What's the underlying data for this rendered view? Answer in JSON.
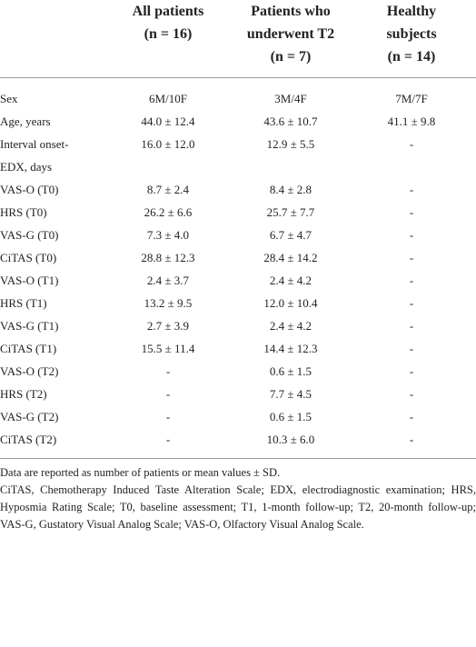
{
  "table": {
    "header": [
      [
        "All patients",
        "(n = 16)"
      ],
      [
        "Patients who",
        "underwent T2",
        "(n = 7)"
      ],
      [
        "Healthy",
        "subjects",
        "(n = 14)"
      ]
    ],
    "rows": [
      [
        "Sex",
        "6M/10F",
        "3M/4F",
        "7M/7F"
      ],
      [
        "Age, years",
        "44.0 ± 12.4",
        "43.6 ± 10.7",
        "41.1 ± 9.8"
      ],
      [
        "Interval onset-EDX, days",
        "16.0 ± 12.0",
        "12.9 ± 5.5",
        "-"
      ],
      [
        "VAS-O (T0)",
        "8.7 ± 2.4",
        "8.4 ± 2.8",
        "-"
      ],
      [
        "HRS (T0)",
        "26.2 ± 6.6",
        "25.7 ± 7.7",
        "-"
      ],
      [
        "VAS-G (T0)",
        "7.3 ± 4.0",
        "6.7 ± 4.7",
        "-"
      ],
      [
        "CiTAS (T0)",
        "28.8 ± 12.3",
        "28.4 ± 14.2",
        "-"
      ],
      [
        "VAS-O (T1)",
        "2.4 ± 3.7",
        "2.4 ± 4.2",
        "-"
      ],
      [
        "HRS (T1)",
        "13.2 ± 9.5",
        "12.0 ± 10.4",
        "-"
      ],
      [
        "VAS-G (T1)",
        "2.7 ± 3.9",
        "2.4 ± 4.2",
        "-"
      ],
      [
        "CiTAS (T1)",
        "15.5 ± 11.4",
        "14.4 ± 12.3",
        "-"
      ],
      [
        "VAS-O (T2)",
        "-",
        "0.6 ± 1.5",
        "-"
      ],
      [
        "HRS (T2)",
        "-",
        "7.7 ± 4.5",
        "-"
      ],
      [
        "VAS-G (T2)",
        "-",
        "0.6 ± 1.5",
        "-"
      ],
      [
        "CiTAS (T2)",
        "-",
        "10.3 ± 6.0",
        "-"
      ]
    ],
    "notes": [
      "Data are reported as number of patients or mean values ± SD.",
      "CiTAS, Chemotherapy Induced Taste Alteration Scale; EDX, electrodiagnostic examination; HRS, Hyposmia Rating Scale; T0, baseline assessment; T1, 1-month follow-up; T2, 20-month follow-up; VAS-G, Gustatory Visual Analog Scale; VAS-O, Olfactory Visual Analog Scale."
    ]
  }
}
